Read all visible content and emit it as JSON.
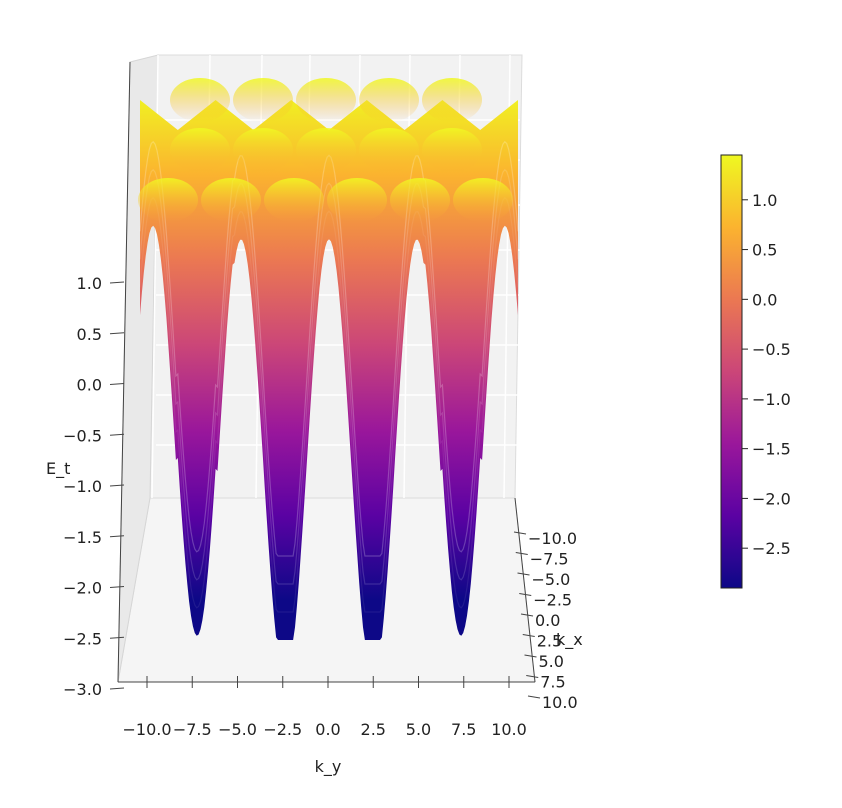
{
  "chart_data": {
    "type": "surface3d",
    "colormap": "plasma",
    "colormap_stops": [
      "#0d0887",
      "#5b02a3",
      "#9a179b",
      "#cb4678",
      "#eb7852",
      "#fbb32f",
      "#eff821"
    ],
    "surface": {
      "x_range": [
        -10,
        10
      ],
      "y_range": [
        -10,
        10
      ],
      "z_min": -2.9,
      "z_max": 1.45,
      "view": "side view along k_x axis; troughs reach about -2.9 near k_y = -7, -2, 2, 7"
    },
    "axes": {
      "x": {
        "label": "k_y",
        "ticks": [
          "−10.0",
          "−7.5",
          "−5.0",
          "−2.5",
          "0.0",
          "2.5",
          "5.0",
          "7.5",
          "10.0"
        ]
      },
      "y": {
        "label": "k_x",
        "ticks": [
          "−10.0",
          "−7.5",
          "−5.0",
          "−2.5",
          "0.0",
          "2.5",
          "5.0",
          "7.5",
          "10.0"
        ]
      },
      "z": {
        "label": "E_t",
        "ticks": [
          "−3.0",
          "−2.5",
          "−2.0",
          "−1.5",
          "−1.0",
          "−0.5",
          "0.0",
          "0.5",
          "1.0"
        ],
        "range": [
          -3.0,
          1.45
        ]
      }
    },
    "colorbar": {
      "range": [
        -2.9,
        1.45
      ],
      "ticks": [
        "−2.5",
        "−2.0",
        "−1.5",
        "−1.0",
        "−0.5",
        "0.0",
        "0.5",
        "1.0"
      ],
      "tick_values": [
        -2.5,
        -2.0,
        -1.5,
        -1.0,
        -0.5,
        0.0,
        0.5,
        1.0
      ]
    },
    "grid": true,
    "legend": "none"
  }
}
